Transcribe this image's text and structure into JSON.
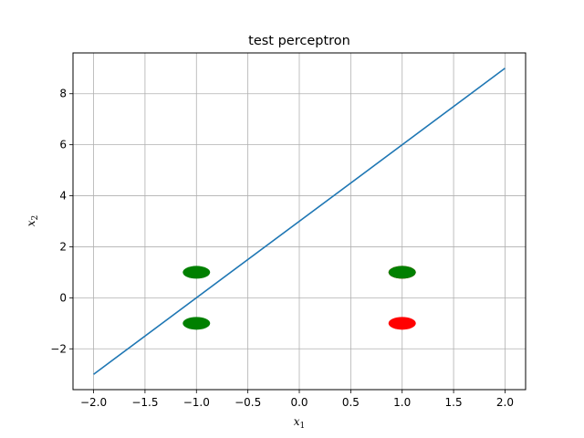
{
  "chart_data": {
    "type": "scatter",
    "title": "test perceptron",
    "xlabel": {
      "base": "x",
      "sub": "1"
    },
    "ylabel": {
      "base": "x",
      "sub": "2"
    },
    "xlim": [
      -2.2,
      2.2
    ],
    "ylim": [
      -3.6,
      9.6
    ],
    "xticks": [
      -2.0,
      -1.5,
      -1.0,
      -0.5,
      0.0,
      0.5,
      1.0,
      1.5,
      2.0
    ],
    "xtick_labels": [
      "−2.0",
      "−1.5",
      "−1.0",
      "−0.5",
      "0.0",
      "0.5",
      "1.0",
      "1.5",
      "2.0"
    ],
    "yticks": [
      -2,
      0,
      2,
      4,
      6,
      8
    ],
    "ytick_labels": [
      "−2",
      "0",
      "2",
      "4",
      "6",
      "8"
    ],
    "grid": true,
    "line": {
      "x": [
        -2.0,
        2.0
      ],
      "y": [
        -3.0,
        9.0
      ],
      "color": "#1f77b4"
    },
    "points": [
      {
        "x": 1.0,
        "y": -1.0,
        "color": "#ff0000"
      },
      {
        "x": 1.0,
        "y": 1.0,
        "color": "#ff0000"
      },
      {
        "x": 1.0,
        "y": 1.0,
        "color": "#008000"
      },
      {
        "x": -1.0,
        "y": 1.0,
        "color": "#008000"
      },
      {
        "x": -1.0,
        "y": -1.0,
        "color": "#008000"
      }
    ]
  }
}
